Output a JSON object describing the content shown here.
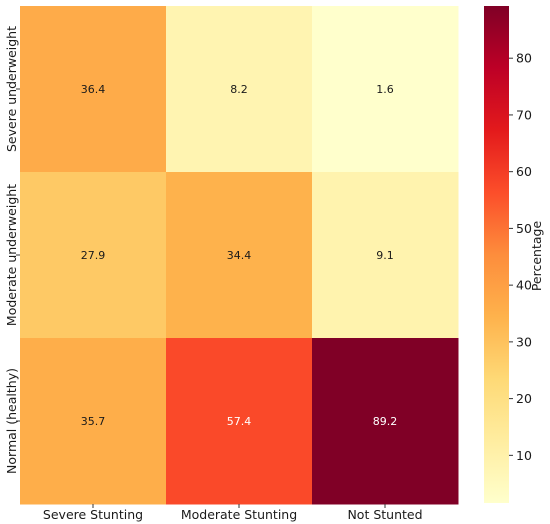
{
  "chart_data": {
    "type": "heatmap",
    "x_categories": [
      "Severe Stunting",
      "Moderate Stunting",
      "Not Stunted"
    ],
    "y_categories": [
      "Severe underweight",
      "Moderate underweight",
      "Normal (healthy)"
    ],
    "values": [
      [
        36.4,
        8.2,
        1.6
      ],
      [
        27.9,
        34.4,
        9.1
      ],
      [
        35.7,
        57.4,
        89.2
      ]
    ],
    "value_labels": [
      [
        "36.4",
        "8.2",
        "1.6"
      ],
      [
        "27.9",
        "34.4",
        "9.1"
      ],
      [
        "35.7",
        "57.4",
        "89.2"
      ]
    ],
    "colorbar": {
      "label": "Percentage",
      "range": [
        1.6,
        89.2
      ],
      "ticks": [
        10,
        20,
        30,
        40,
        50,
        60,
        70,
        80
      ],
      "tick_labels": [
        "10",
        "20",
        "30",
        "40",
        "50",
        "60",
        "70",
        "80"
      ],
      "colormap": "YlOrRd",
      "stops": [
        "#ffffcc",
        "#ffeda0",
        "#fed976",
        "#feb24c",
        "#fd8d3c",
        "#fc4e2a",
        "#e31a1c",
        "#bd0026",
        "#800026"
      ]
    },
    "title": "",
    "xlabel": "",
    "ylabel": ""
  }
}
